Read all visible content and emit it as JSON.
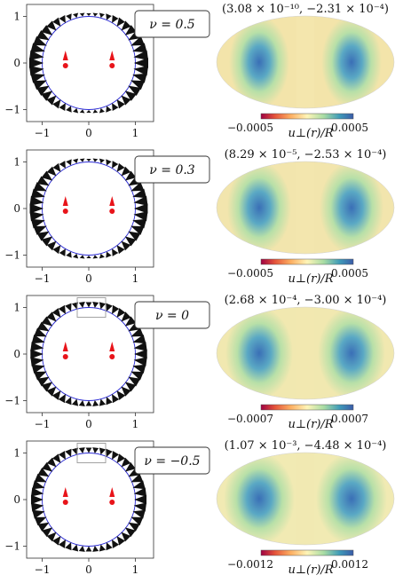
{
  "panels": [
    {
      "nu_label": "ν = 0.5",
      "extremes_label": "(3.08 × 10⁻¹⁰, −2.31 × 10⁻⁴)",
      "cbar_min": "−0.0005",
      "cbar_max": "0.0005",
      "cbar_label": "u⊥(r)/R",
      "show_inset_box": false,
      "background_tone": 0.62
    },
    {
      "nu_label": "ν = 0.3",
      "extremes_label": "(8.29 × 10⁻⁵, −2.53 × 10⁻⁴)",
      "cbar_min": "−0.0005",
      "cbar_max": "0.0005",
      "cbar_label": "u⊥(r)/R",
      "show_inset_box": false,
      "background_tone": 0.66
    },
    {
      "nu_label": "ν = 0",
      "extremes_label": "(2.68 × 10⁻⁴, −3.00 × 10⁻⁴)",
      "cbar_min": "−0.0007",
      "cbar_max": "0.0007",
      "cbar_label": "u⊥(r)/R",
      "show_inset_box": true,
      "background_tone": 0.72
    },
    {
      "nu_label": "ν = −0.5",
      "extremes_label": "(1.07 × 10⁻³, −4.48 × 10⁻⁴)",
      "cbar_min": "−0.0012",
      "cbar_max": "0.0012",
      "cbar_label": "u⊥(r)/R",
      "show_inset_box": true,
      "background_tone": 0.78
    }
  ],
  "axis_ticks": {
    "x": [
      "−1",
      "0",
      "1"
    ],
    "y": [
      "1",
      "0",
      "−1"
    ]
  },
  "colors": {
    "circle": "#2b2bd6",
    "arrows": "#111111",
    "charges": "#e8141a",
    "cmap_low": "#b2182b",
    "cmap_mid": "#fdf5b0",
    "cmap_high": "#2c6cb4"
  }
}
